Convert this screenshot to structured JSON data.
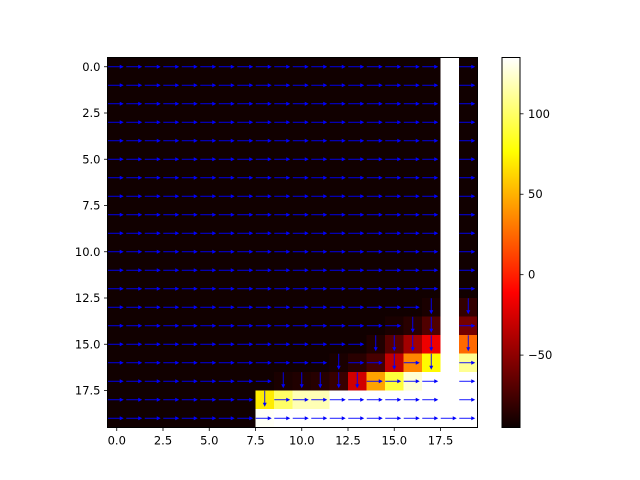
{
  "chart_data": {
    "type": "heatmap",
    "title": "",
    "xlabel": "",
    "ylabel": "",
    "rows": 20,
    "cols": 20,
    "xlim": [
      -0.5,
      19.5
    ],
    "ylim": [
      19.5,
      -0.5
    ],
    "x_ticks": [
      0.0,
      2.5,
      5.0,
      7.5,
      10.0,
      12.5,
      15.0,
      17.5
    ],
    "x_tick_labels": [
      "0.0",
      "2.5",
      "5.0",
      "7.5",
      "10.0",
      "12.5",
      "15.0",
      "17.5"
    ],
    "y_ticks": [
      0.0,
      2.5,
      5.0,
      7.5,
      10.0,
      12.5,
      15.0,
      17.5
    ],
    "y_tick_labels": [
      "0.0",
      "2.5",
      "5.0",
      "7.5",
      "10.0",
      "12.5",
      "15.0",
      "17.5"
    ],
    "colormap": "hot",
    "vmin": -95,
    "vmax": 135,
    "colorbar_ticks": [
      -50,
      0,
      50,
      100
    ],
    "colorbar_tick_labels": [
      "−50",
      "0",
      "50",
      "100"
    ],
    "arrow_color": "#0000ff",
    "grid": false,
    "values": [
      [
        -93,
        -93,
        -93,
        -93,
        -93,
        -93,
        -93,
        -93,
        -93,
        -93,
        -93,
        -93,
        -93,
        -93,
        -93,
        -93,
        -93,
        -93,
        135,
        -93
      ],
      [
        -93,
        -93,
        -93,
        -93,
        -93,
        -93,
        -93,
        -93,
        -93,
        -93,
        -93,
        -93,
        -93,
        -93,
        -93,
        -93,
        -93,
        -93,
        135,
        -93
      ],
      [
        -93,
        -93,
        -93,
        -93,
        -93,
        -93,
        -93,
        -93,
        -93,
        -93,
        -93,
        -93,
        -93,
        -93,
        -93,
        -93,
        -93,
        -93,
        135,
        -93
      ],
      [
        -93,
        -93,
        -93,
        -93,
        -93,
        -93,
        -93,
        -93,
        -93,
        -93,
        -93,
        -93,
        -93,
        -93,
        -93,
        -93,
        -93,
        -93,
        135,
        -93
      ],
      [
        -93,
        -93,
        -93,
        -93,
        -93,
        -93,
        -93,
        -93,
        -93,
        -93,
        -93,
        -93,
        -93,
        -93,
        -93,
        -93,
        -93,
        -93,
        135,
        -93
      ],
      [
        -93,
        -93,
        -93,
        -93,
        -93,
        -93,
        -93,
        -93,
        -93,
        -93,
        -93,
        -93,
        -93,
        -93,
        -93,
        -93,
        -93,
        -93,
        135,
        -93
      ],
      [
        -93,
        -93,
        -93,
        -93,
        -93,
        -93,
        -93,
        -93,
        -93,
        -93,
        -93,
        -93,
        -93,
        -93,
        -93,
        -93,
        -93,
        -93,
        135,
        -93
      ],
      [
        -93,
        -93,
        -93,
        -93,
        -93,
        -93,
        -93,
        -93,
        -93,
        -93,
        -93,
        -93,
        -93,
        -93,
        -93,
        -93,
        -93,
        -93,
        135,
        -93
      ],
      [
        -93,
        -93,
        -93,
        -93,
        -93,
        -93,
        -93,
        -93,
        -93,
        -93,
        -93,
        -93,
        -93,
        -93,
        -93,
        -93,
        -93,
        -93,
        135,
        -93
      ],
      [
        -93,
        -93,
        -93,
        -93,
        -93,
        -93,
        -93,
        -93,
        -93,
        -93,
        -93,
        -93,
        -93,
        -93,
        -93,
        -93,
        -93,
        -93,
        135,
        -93
      ],
      [
        -93,
        -93,
        -93,
        -93,
        -93,
        -93,
        -93,
        -93,
        -93,
        -93,
        -93,
        -93,
        -93,
        -93,
        -93,
        -93,
        -93,
        -93,
        135,
        -93
      ],
      [
        -93,
        -93,
        -93,
        -93,
        -93,
        -93,
        -93,
        -93,
        -93,
        -93,
        -93,
        -93,
        -93,
        -93,
        -93,
        -93,
        -93,
        -93,
        135,
        -93
      ],
      [
        -93,
        -93,
        -93,
        -93,
        -93,
        -93,
        -93,
        -93,
        -93,
        -93,
        -93,
        -93,
        -93,
        -93,
        -93,
        -93,
        -93,
        -93,
        135,
        -93
      ],
      [
        -93,
        -93,
        -93,
        -93,
        -93,
        -93,
        -93,
        -93,
        -93,
        -93,
        -93,
        -93,
        -93,
        -93,
        -93,
        -93,
        -93,
        -90,
        135,
        -82
      ],
      [
        -93,
        -93,
        -93,
        -93,
        -93,
        -93,
        -93,
        -93,
        -93,
        -93,
        -93,
        -93,
        -93,
        -93,
        -93,
        -90,
        -85,
        -72,
        135,
        -60
      ],
      [
        -93,
        -93,
        -93,
        -93,
        -93,
        -93,
        -93,
        -93,
        -93,
        -93,
        -93,
        -93,
        -93,
        -93,
        -88,
        -70,
        -45,
        -20,
        135,
        25
      ],
      [
        -93,
        -93,
        -93,
        -93,
        -93,
        -93,
        -93,
        -93,
        -93,
        -93,
        -93,
        -93,
        -90,
        -85,
        -75,
        -35,
        35,
        75,
        135,
        110
      ],
      [
        -93,
        -93,
        -93,
        -93,
        -93,
        -93,
        -93,
        -93,
        -93,
        -90,
        -88,
        -86,
        -80,
        -30,
        45,
        90,
        125,
        135,
        135,
        135
      ],
      [
        -93,
        -93,
        -93,
        -93,
        -93,
        -93,
        -93,
        -93,
        70,
        100,
        118,
        118,
        135,
        135,
        135,
        135,
        135,
        135,
        135,
        135
      ],
      [
        -93,
        -93,
        -93,
        -93,
        -93,
        -93,
        -93,
        -93,
        133,
        135,
        135,
        135,
        135,
        135,
        135,
        135,
        135,
        135,
        135,
        135
      ]
    ],
    "arrows": {
      "right": "all cells except column 18 and down-marked cells",
      "down": [
        [
          13,
          17
        ],
        [
          13,
          19
        ],
        [
          14,
          16
        ],
        [
          14,
          17
        ],
        [
          15,
          14
        ],
        [
          15,
          15
        ],
        [
          15,
          16
        ],
        [
          15,
          17
        ],
        [
          15,
          19
        ],
        [
          16,
          12
        ],
        [
          16,
          15
        ],
        [
          16,
          17
        ],
        [
          17,
          9
        ],
        [
          17,
          10
        ],
        [
          17,
          11
        ],
        [
          17,
          12
        ],
        [
          17,
          13
        ],
        [
          18,
          8
        ]
      ],
      "down_rows_17_plus": true
    }
  }
}
